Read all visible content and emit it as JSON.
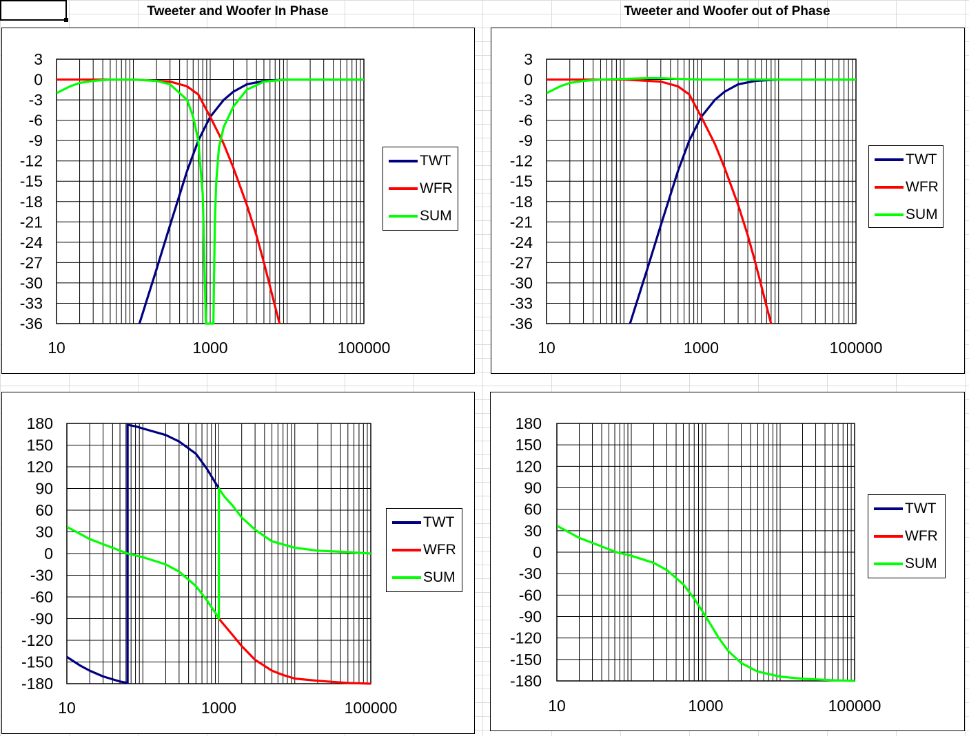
{
  "headings": {
    "in_phase": "Tweeter and Woofer In Phase",
    "out_of_phase": "Tweeter and Woofer out of Phase"
  },
  "colors": {
    "TWT": "#000080",
    "WFR": "#ff0000",
    "SUM": "#00ff00"
  },
  "chart_data": [
    {
      "type": "line",
      "x_scale": "log",
      "xlim": [
        10,
        100000
      ],
      "ylim": [
        -36,
        3
      ],
      "x_ticks": [
        "10",
        "1000",
        "100000"
      ],
      "y_ticks": [
        "3",
        "0",
        "-3",
        "-6",
        "-9",
        "-12",
        "-15",
        "-18",
        "-21",
        "-24",
        "-27",
        "-30",
        "-33",
        "-36"
      ],
      "grid": true,
      "legend": "right",
      "series": [
        {
          "name": "TWT",
          "x": [
            120,
            200,
            300,
            500,
            700,
            1000,
            1500,
            2000,
            3000,
            5000,
            7000,
            10000,
            14000,
            20000,
            100000
          ],
          "y": [
            -36,
            -28,
            -21.5,
            -13.5,
            -9,
            -5.5,
            -3,
            -1.8,
            -0.7,
            -0.2,
            -0.1,
            0,
            0,
            0,
            0
          ]
        },
        {
          "name": "WFR",
          "x": [
            10,
            100,
            300,
            500,
            700,
            1000,
            1500,
            2000,
            3000,
            4000,
            5000,
            6000,
            7000,
            8000
          ],
          "y": [
            0,
            0,
            -0.3,
            -1,
            -2.2,
            -5.5,
            -9.5,
            -13,
            -18.5,
            -23,
            -27,
            -30.5,
            -33.5,
            -36
          ]
        },
        {
          "name": "SUM",
          "x": [
            10,
            15,
            20,
            30,
            50,
            100,
            200,
            300,
            500,
            600,
            700,
            800,
            880,
            900,
            950,
            1100,
            1150,
            1200,
            1300,
            1500,
            2000,
            3000,
            5000,
            8000,
            10000,
            100000
          ],
          "y": [
            -2,
            -1,
            -0.5,
            -0.2,
            0,
            0,
            -0.2,
            -0.7,
            -3,
            -5.5,
            -9,
            -17,
            -36,
            -36,
            -36,
            -36,
            -21,
            -15,
            -10,
            -7,
            -4,
            -1.5,
            -0.3,
            -0.1,
            0,
            0
          ]
        }
      ]
    },
    {
      "type": "line",
      "x_scale": "log",
      "xlim": [
        10,
        100000
      ],
      "ylim": [
        -36,
        3
      ],
      "x_ticks": [
        "10",
        "1000",
        "100000"
      ],
      "y_ticks": [
        "3",
        "0",
        "-3",
        "-6",
        "-9",
        "-12",
        "-15",
        "-18",
        "-21",
        "-24",
        "-27",
        "-30",
        "-33",
        "-36"
      ],
      "grid": true,
      "legend": "right",
      "series": [
        {
          "name": "TWT",
          "x": [
            120,
            200,
            300,
            500,
            700,
            1000,
            1500,
            2000,
            3000,
            5000,
            7000,
            10000,
            14000,
            20000,
            100000
          ],
          "y": [
            -36,
            -28,
            -21.5,
            -13.5,
            -9,
            -5.5,
            -3,
            -1.8,
            -0.7,
            -0.2,
            -0.1,
            0,
            0,
            0,
            0
          ]
        },
        {
          "name": "WFR",
          "x": [
            10,
            100,
            300,
            500,
            700,
            1000,
            1500,
            2000,
            3000,
            4000,
            5000,
            6000,
            7000,
            8000
          ],
          "y": [
            0,
            0,
            -0.3,
            -1,
            -2.2,
            -5.5,
            -9.5,
            -13,
            -18.5,
            -23,
            -27,
            -30.5,
            -33.5,
            -36
          ]
        },
        {
          "name": "SUM",
          "x": [
            10,
            15,
            20,
            30,
            50,
            100,
            200,
            300,
            500,
            1000,
            2000,
            5000,
            10000,
            100000
          ],
          "y": [
            -2,
            -1,
            -0.5,
            -0.2,
            0,
            0.1,
            0.2,
            0.2,
            0.1,
            0,
            0,
            0,
            0,
            0
          ]
        }
      ]
    },
    {
      "type": "line",
      "x_scale": "log",
      "xlim": [
        10,
        100000
      ],
      "ylim": [
        -180,
        180
      ],
      "x_ticks": [
        "10",
        "1000",
        "100000"
      ],
      "y_ticks": [
        "180",
        "150",
        "120",
        "90",
        "60",
        "30",
        "0",
        "-30",
        "-60",
        "-90",
        "-120",
        "-150",
        "-180"
      ],
      "grid": true,
      "legend": "right",
      "series": [
        {
          "name": "TWT",
          "x": [
            10,
            15,
            20,
            30,
            50,
            63,
            63,
            80,
            100,
            200,
            300,
            500,
            700,
            1000
          ],
          "y": [
            -143,
            -155,
            -162,
            -170,
            -177,
            -179,
            178,
            176,
            173,
            164,
            155,
            138,
            117,
            90
          ]
        },
        {
          "name": "WFR",
          "x": [
            1000,
            1500,
            2000,
            3000,
            5000,
            7000,
            10000,
            20000,
            50000,
            100000
          ],
          "y": [
            -90,
            -112,
            -128,
            -147,
            -162,
            -168,
            -173,
            -176,
            -179,
            -180
          ]
        },
        {
          "name": "SUM",
          "x": [
            10,
            20,
            40,
            63,
            100,
            200,
            300,
            500,
            700,
            900,
            1000,
            1000,
            1200,
            1500,
            2000,
            3000,
            5000,
            10000,
            20000,
            50000,
            100000
          ],
          "y": [
            37,
            20,
            8,
            0,
            -5,
            -15,
            -25,
            -45,
            -65,
            -82,
            -90,
            90,
            78,
            67,
            50,
            33,
            17,
            8,
            4,
            2,
            0
          ]
        }
      ]
    },
    {
      "type": "line",
      "x_scale": "log",
      "xlim": [
        10,
        100000
      ],
      "ylim": [
        -180,
        180
      ],
      "x_ticks": [
        "10",
        "1000",
        "100000"
      ],
      "y_ticks": [
        "180",
        "150",
        "120",
        "90",
        "60",
        "30",
        "0",
        "-30",
        "-60",
        "-90",
        "-120",
        "-150",
        "-180"
      ],
      "grid": true,
      "legend": "right",
      "series": [
        {
          "name": "TWT",
          "x": [],
          "y": []
        },
        {
          "name": "WFR",
          "x": [],
          "y": []
        },
        {
          "name": "SUM",
          "x": [
            10,
            20,
            40,
            63,
            100,
            200,
            300,
            500,
            700,
            1000,
            1500,
            2000,
            3000,
            5000,
            10000,
            20000,
            50000,
            100000
          ],
          "y": [
            37,
            20,
            8,
            0,
            -5,
            -15,
            -25,
            -45,
            -65,
            -90,
            -120,
            -138,
            -155,
            -167,
            -174,
            -177,
            -179,
            -180
          ]
        }
      ]
    }
  ]
}
